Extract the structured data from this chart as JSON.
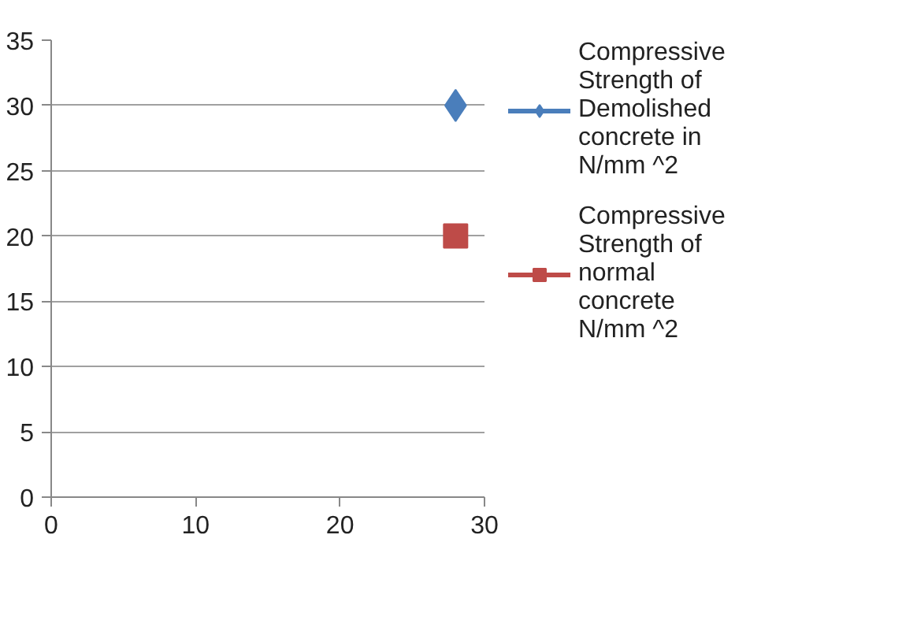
{
  "chart_data": {
    "type": "line",
    "x": [
      28
    ],
    "series": [
      {
        "name": "Compressive Strength of Demolished concrete in N/mm ^2",
        "color": "#4a7ebb",
        "values": [
          30
        ],
        "marker": "diamond"
      },
      {
        "name": "Compressive Strength of normal concrete N/mm ^2",
        "color": "#be4b48",
        "values": [
          20
        ],
        "marker": "square"
      }
    ],
    "xlim": [
      0,
      30
    ],
    "xticks": [
      0,
      10,
      20,
      30
    ],
    "ylim": [
      0,
      35
    ],
    "yticks": [
      0,
      5,
      10,
      15,
      20,
      25,
      30,
      35
    ],
    "grid": "y",
    "legend": "right"
  }
}
